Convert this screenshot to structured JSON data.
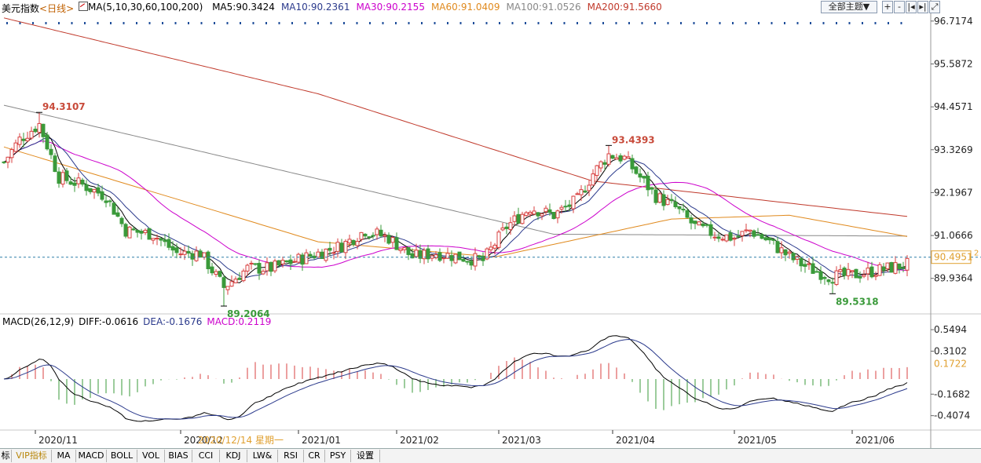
{
  "header": {
    "title": "美元指数",
    "period": "<日线>",
    "ma_label": "MA(5,10,30,60,100,200)",
    "ma_values": [
      {
        "label": "MA5:90.3424",
        "color": "#000000"
      },
      {
        "label": "MA10:90.2361",
        "color": "#2b3a8c"
      },
      {
        "label": "MA30:90.2155",
        "color": "#cc00cc"
      },
      {
        "label": "MA60:91.0409",
        "color": "#e08a1e"
      },
      {
        "label": "MA100:91.0526",
        "color": "#888888"
      },
      {
        "label": "MA200:91.5660",
        "color": "#c0392b"
      }
    ],
    "theme_button": "全部主题▼"
  },
  "toolbar": {
    "icons": [
      "zoom-in-icon",
      "zoom-out-icon",
      "move-left-icon",
      "move-right-icon",
      "expand-icon"
    ]
  },
  "price_axis": {
    "ticks": [
      "96.7174",
      "95.5872",
      "94.4571",
      "93.3269",
      "92.1967",
      "91.0666",
      "89.9364"
    ],
    "current": "90.4951",
    "marker": "2"
  },
  "annotations": {
    "high1": "94.3107",
    "high2": "93.4393",
    "low1": "89.2064",
    "low2": "89.5318"
  },
  "macd": {
    "label": "MACD(26,12,9)",
    "diff": "DIFF:-0.0616",
    "dea": "DEA:-0.1676",
    "macd": "MACD:0.2119"
  },
  "macd_axis": {
    "ticks": [
      "0.5494",
      "0.3102",
      "-0.1682",
      "-0.4074"
    ],
    "current": "0.1722"
  },
  "date_axis": {
    "labels": [
      "2020/11",
      "2020/12",
      "2021/01",
      "2021/02",
      "2021/03",
      "2021/04",
      "2021/05",
      "2021/06"
    ],
    "cursor_label": "2020/12/14 星期一"
  },
  "bottom_tabs": [
    "标",
    "VIP指标",
    "MA",
    "MACD",
    "BOLL",
    "VOL",
    "BIAS",
    "CCI",
    "KDJ",
    "LW&",
    "RSI",
    "CR",
    "PSY",
    "设置"
  ],
  "colors": {
    "up": "#d84040",
    "down": "#3a9a3a",
    "ma5": "#000000",
    "ma10": "#2b3a8c",
    "ma30": "#cc00cc",
    "ma60": "#e08a1e",
    "ma100": "#888888",
    "ma200": "#c0392b"
  },
  "chart_data": {
    "type": "candlestick",
    "symbol": "美元指数",
    "period": "daily",
    "y_axis_range": [
      89.0,
      96.9
    ],
    "close_anchors": [
      {
        "day": 0,
        "close": 93.0
      },
      {
        "day": 4,
        "close": 93.6
      },
      {
        "day": 9,
        "close": 94.0
      },
      {
        "day": 14,
        "close": 92.6
      },
      {
        "day": 20,
        "close": 92.4
      },
      {
        "day": 26,
        "close": 92.1
      },
      {
        "day": 31,
        "close": 91.2
      },
      {
        "day": 38,
        "close": 91.1
      },
      {
        "day": 44,
        "close": 90.6
      },
      {
        "day": 50,
        "close": 90.6
      },
      {
        "day": 56,
        "close": 89.7
      },
      {
        "day": 62,
        "close": 90.2
      },
      {
        "day": 68,
        "close": 90.2
      },
      {
        "day": 74,
        "close": 90.4
      },
      {
        "day": 80,
        "close": 90.6
      },
      {
        "day": 86,
        "close": 90.8
      },
      {
        "day": 92,
        "close": 91.2
      },
      {
        "day": 98,
        "close": 91.0
      },
      {
        "day": 104,
        "close": 90.5
      },
      {
        "day": 110,
        "close": 90.6
      },
      {
        "day": 116,
        "close": 90.5
      },
      {
        "day": 122,
        "close": 90.4
      },
      {
        "day": 128,
        "close": 91.3
      },
      {
        "day": 134,
        "close": 91.8
      },
      {
        "day": 140,
        "close": 91.6
      },
      {
        "day": 146,
        "close": 92.0
      },
      {
        "day": 150,
        "close": 92.7
      },
      {
        "day": 154,
        "close": 93.2
      },
      {
        "day": 158,
        "close": 93.1
      },
      {
        "day": 162,
        "close": 92.6
      },
      {
        "day": 166,
        "close": 92.1
      },
      {
        "day": 171,
        "close": 91.8
      },
      {
        "day": 176,
        "close": 91.3
      },
      {
        "day": 181,
        "close": 91.1
      },
      {
        "day": 186,
        "close": 91.0
      },
      {
        "day": 190,
        "close": 91.2
      },
      {
        "day": 195,
        "close": 90.9
      },
      {
        "day": 200,
        "close": 90.5
      },
      {
        "day": 205,
        "close": 90.2
      },
      {
        "day": 210,
        "close": 90.0
      },
      {
        "day": 215,
        "close": 90.0
      },
      {
        "day": 220,
        "close": 90.1
      },
      {
        "day": 225,
        "close": 90.2
      },
      {
        "day": 230,
        "close": 90.3
      }
    ],
    "ma_series": {
      "MA100": [
        [
          0,
          94.5
        ],
        [
          140,
          91.1
        ],
        [
          230,
          91.05
        ]
      ],
      "MA200": [
        [
          0,
          96.8
        ],
        [
          80,
          94.8
        ],
        [
          150,
          92.5
        ],
        [
          230,
          91.57
        ]
      ],
      "MA60": [
        [
          0,
          93.4
        ],
        [
          80,
          90.9
        ],
        [
          125,
          90.5
        ],
        [
          170,
          91.5
        ],
        [
          200,
          91.6
        ],
        [
          230,
          91.04
        ]
      ]
    },
    "labeled_points": [
      {
        "label": "94.3107",
        "value": 94.3107,
        "type": "high"
      },
      {
        "label": "93.4393",
        "value": 93.4393,
        "type": "high"
      },
      {
        "label": "89.2064",
        "value": 89.2064,
        "type": "low"
      },
      {
        "label": "89.5318",
        "value": 89.5318,
        "type": "low"
      }
    ],
    "last_close": 90.4951,
    "macd_range": [
      -0.55,
      0.62
    ]
  }
}
